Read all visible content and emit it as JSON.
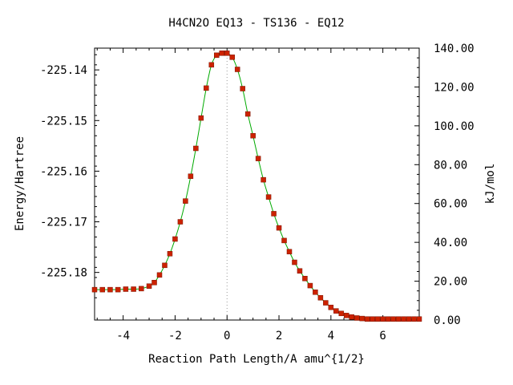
{
  "chart_data": {
    "type": "line",
    "title": "H4CN2O   EQ13 - TS136 - EQ12",
    "xlabel": "Reaction Path Length/A amu^{1/2}",
    "ylabel": "Energy/Hartree",
    "y2label": "kJ/mol",
    "xlim": [
      -5.1,
      7.4
    ],
    "ylim": [
      -225.1894,
      -225.1357
    ],
    "y2lim": [
      0,
      140
    ],
    "x_ticks": [
      -4,
      -2,
      0,
      2,
      4,
      6
    ],
    "x_tick_labels": [
      "-4",
      "-2",
      "0",
      "2",
      "4",
      "6"
    ],
    "y_ticks": [
      -225.14,
      -225.15,
      -225.16,
      -225.17,
      -225.18
    ],
    "y_tick_labels": [
      "-225.14",
      "-225.15",
      "-225.16",
      "-225.17",
      "-225.18"
    ],
    "y2_ticks": [
      0,
      20,
      40,
      60,
      80,
      100,
      120,
      140
    ],
    "y2_tick_labels": [
      "0.00",
      "20.00",
      "40.00",
      "60.00",
      "80.00",
      "100.00",
      "120.00",
      "140.00"
    ],
    "ts_x": 0,
    "line_color": "#00aa00",
    "marker_color": "#cc2200",
    "series": [
      {
        "x": [
          -5.1,
          -4.8,
          -4.5,
          -4.2,
          -3.9,
          -3.6,
          -3.3,
          -3.0,
          -2.8,
          -2.6,
          -2.4,
          -2.2,
          -2.0,
          -1.8,
          -1.6,
          -1.4,
          -1.2,
          -1.0,
          -0.8,
          -0.6,
          -0.4,
          -0.2,
          0.0,
          0.2,
          0.4,
          0.6,
          0.8,
          1.0,
          1.2,
          1.4,
          1.6,
          1.8,
          2.0,
          2.2,
          2.4,
          2.6,
          2.8,
          3.0,
          3.2,
          3.4,
          3.6,
          3.8,
          4.0,
          4.2,
          4.4,
          4.6,
          4.8,
          5.0,
          5.2,
          5.4,
          5.6,
          5.8,
          6.0,
          6.2,
          6.4,
          6.6,
          6.8,
          7.0,
          7.2,
          7.4
        ],
        "y": [
          -225.1834,
          -225.1834,
          -225.1834,
          -225.1834,
          -225.1833,
          -225.1833,
          -225.1832,
          -225.1827,
          -225.182,
          -225.1805,
          -225.1786,
          -225.1763,
          -225.1734,
          -225.17,
          -225.1659,
          -225.161,
          -225.1555,
          -225.1495,
          -225.1436,
          -225.139,
          -225.1371,
          -225.1367,
          -225.1367,
          -225.1375,
          -225.1399,
          -225.1437,
          -225.1487,
          -225.153,
          -225.1575,
          -225.1617,
          -225.1651,
          -225.1684,
          -225.1712,
          -225.1737,
          -225.1759,
          -225.178,
          -225.1797,
          -225.1812,
          -225.1826,
          -225.1839,
          -225.185,
          -225.186,
          -225.1869,
          -225.1876,
          -225.1881,
          -225.1885,
          -225.1888,
          -225.189,
          -225.1891,
          -225.1892,
          -225.1892,
          -225.1892,
          -225.1892,
          -225.1892,
          -225.1892,
          -225.1892,
          -225.1892,
          -225.1892,
          -225.1892,
          -225.1892
        ]
      }
    ]
  }
}
